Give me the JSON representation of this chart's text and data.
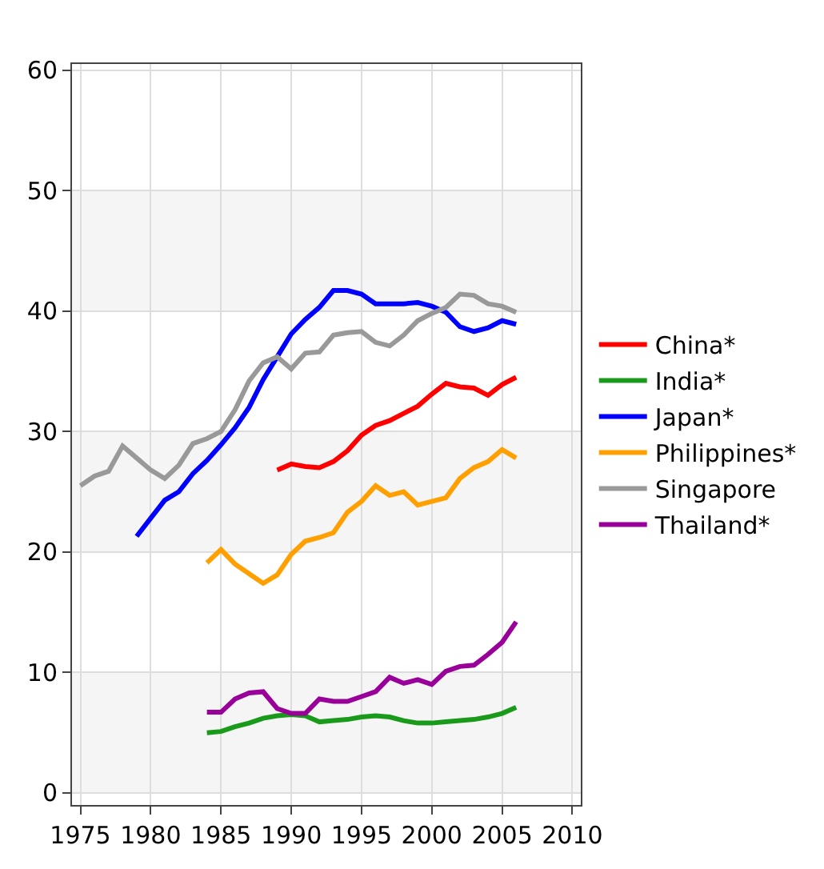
{
  "chart_data": {
    "type": "line",
    "xlim": [
      1974.4,
      2010.6
    ],
    "xticks": [
      1975,
      1980,
      1985,
      1990,
      1995,
      2000,
      2005,
      2010
    ],
    "ylim": [
      -1,
      60.5
    ],
    "yticks": [
      0,
      10,
      20,
      30,
      40,
      50,
      60
    ],
    "grid": true,
    "legend": "right",
    "bands": [
      {
        "axis": "y",
        "from": 0,
        "to": 10,
        "color": "#f5f5f5"
      },
      {
        "axis": "y",
        "from": 20,
        "to": 30,
        "color": "#f5f5f5"
      },
      {
        "axis": "y",
        "from": 40,
        "to": 50,
        "color": "#f5f5f5"
      }
    ],
    "series": [
      {
        "name": "China*",
        "color": "#ff0000",
        "x": [
          1989,
          1990,
          1991,
          1992,
          1993,
          1994,
          1995,
          1996,
          1997,
          1998,
          1999,
          2000,
          2001,
          2002,
          2003,
          2004,
          2005,
          2006
        ],
        "values": [
          26.8,
          27.3,
          27.1,
          27.0,
          27.5,
          28.4,
          29.7,
          30.5,
          30.9,
          31.5,
          32.1,
          33.1,
          34.0,
          33.7,
          33.6,
          33.0,
          33.9,
          34.5
        ]
      },
      {
        "name": "India*",
        "color": "#1a9a1a",
        "x": [
          1984,
          1985,
          1986,
          1987,
          1988,
          1989,
          1990,
          1991,
          1992,
          1993,
          1994,
          1995,
          1996,
          1997,
          1998,
          1999,
          2000,
          2001,
          2002,
          2003,
          2004,
          2005,
          2006
        ],
        "values": [
          5.0,
          5.1,
          5.5,
          5.8,
          6.2,
          6.4,
          6.5,
          6.4,
          5.9,
          6.0,
          6.1,
          6.3,
          6.4,
          6.3,
          6.0,
          5.8,
          5.8,
          5.9,
          6.0,
          6.1,
          6.3,
          6.6,
          7.1
        ]
      },
      {
        "name": "Japan*",
        "color": "#0000ff",
        "x": [
          1979,
          1980,
          1981,
          1982,
          1983,
          1984,
          1985,
          1986,
          1987,
          1988,
          1989,
          1990,
          1991,
          1992,
          1993,
          1994,
          1995,
          1996,
          1997,
          1998,
          1999,
          2000,
          2001,
          2002,
          2003,
          2004,
          2005,
          2006
        ],
        "values": [
          21.3,
          22.8,
          24.3,
          25.0,
          26.5,
          27.6,
          28.9,
          30.3,
          32.0,
          34.3,
          36.2,
          38.1,
          39.3,
          40.3,
          41.7,
          41.7,
          41.4,
          40.6,
          40.6,
          40.6,
          40.7,
          40.4,
          39.9,
          38.7,
          38.3,
          38.6,
          39.2,
          38.9
        ]
      },
      {
        "name": "Philippines*",
        "color": "#ffa000",
        "x": [
          1984,
          1985,
          1986,
          1987,
          1988,
          1989,
          1990,
          1991,
          1992,
          1993,
          1994,
          1995,
          1996,
          1997,
          1998,
          1999,
          2000,
          2001,
          2002,
          2003,
          2004,
          2005,
          2006
        ],
        "values": [
          19.1,
          20.2,
          19.0,
          18.2,
          17.4,
          18.1,
          19.8,
          20.9,
          21.2,
          21.6,
          23.3,
          24.2,
          25.5,
          24.7,
          25.0,
          23.9,
          24.2,
          24.5,
          26.1,
          27.0,
          27.5,
          28.5,
          27.8
        ]
      },
      {
        "name": "Singapore",
        "color": "#999999",
        "x": [
          1975,
          1976,
          1977,
          1978,
          1979,
          1980,
          1981,
          1982,
          1983,
          1984,
          1985,
          1986,
          1987,
          1988,
          1989,
          1990,
          1991,
          1992,
          1993,
          1994,
          1995,
          1996,
          1997,
          1998,
          1999,
          2000,
          2001,
          2002,
          2003,
          2004,
          2005,
          2006
        ],
        "values": [
          25.5,
          26.3,
          26.7,
          28.8,
          27.8,
          26.8,
          26.1,
          27.2,
          29.0,
          29.4,
          30.0,
          31.8,
          34.2,
          35.7,
          36.2,
          35.2,
          36.5,
          36.6,
          38.0,
          38.2,
          38.3,
          37.4,
          37.1,
          38.0,
          39.2,
          39.8,
          40.3,
          41.4,
          41.3,
          40.6,
          40.4,
          39.9
        ]
      },
      {
        "name": "Thailand*",
        "color": "#990099",
        "x": [
          1984,
          1985,
          1986,
          1987,
          1988,
          1989,
          1990,
          1991,
          1992,
          1993,
          1994,
          1995,
          1996,
          1997,
          1998,
          1999,
          2000,
          2001,
          2002,
          2003,
          2004,
          2005,
          2006
        ],
        "values": [
          6.7,
          6.7,
          7.8,
          8.3,
          8.4,
          7.0,
          6.6,
          6.6,
          7.8,
          7.6,
          7.6,
          8.0,
          8.4,
          9.6,
          9.1,
          9.4,
          9.0,
          10.1,
          10.5,
          10.6,
          11.5,
          12.5,
          14.2
        ]
      }
    ]
  }
}
